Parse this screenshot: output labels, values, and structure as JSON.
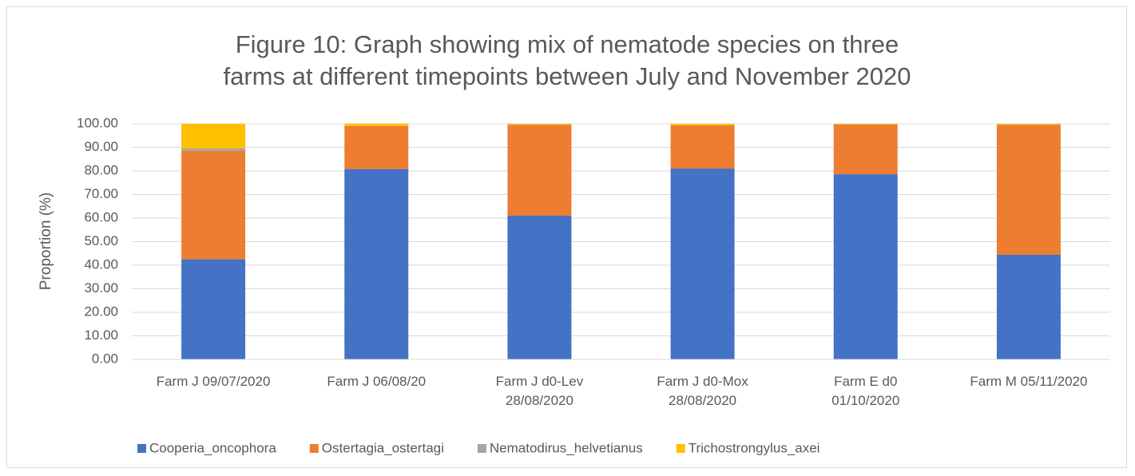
{
  "chart_data": {
    "type": "stacked_bar",
    "title": "Figure 10: Graph showing mix of nematode species on three farms at different timepoints between July and November 2020",
    "ylabel": "Proportion (%)",
    "categories": [
      "Farm J 09/07/2020",
      "Farm J 06/08/20",
      "Farm J d0-Lev\n28/08/2020",
      "Farm J d0-Mox\n28/08/2020",
      "Farm E d0\n01/10/2020",
      "Farm M 05/11/2020"
    ],
    "series": [
      {
        "name": "Cooperia_oncophora",
        "color": "#4472c4",
        "values": [
          42.5,
          80.8,
          61.0,
          81.0,
          78.6,
          44.4
        ]
      },
      {
        "name": "Ostertagia_ostertagi",
        "color": "#ed7d31",
        "values": [
          46.0,
          18.2,
          38.6,
          18.4,
          21.1,
          55.2
        ]
      },
      {
        "name": "Nematodirus_helvetianus",
        "color": "#a5a5a5",
        "values": [
          1.0,
          0,
          0,
          0,
          0,
          0
        ]
      },
      {
        "name": "Trichostrongylus_axei",
        "color": "#ffc000",
        "values": [
          10.5,
          1.0,
          0.4,
          0.6,
          0.3,
          0.4
        ]
      }
    ],
    "ylim": [
      0,
      100
    ],
    "yticks": [
      {
        "value": 0,
        "label": "0.00"
      },
      {
        "value": 10,
        "label": "10.00"
      },
      {
        "value": 20,
        "label": "20.00"
      },
      {
        "value": 30,
        "label": "30.00"
      },
      {
        "value": 40,
        "label": "40.00"
      },
      {
        "value": 50,
        "label": "50.00"
      },
      {
        "value": 60,
        "label": "60.00"
      },
      {
        "value": 70,
        "label": "70.00"
      },
      {
        "value": 80,
        "label": "80.00"
      },
      {
        "value": 90,
        "label": "90.00"
      },
      {
        "value": 100,
        "label": "100.00"
      }
    ],
    "grid": true,
    "legend": "bottom"
  }
}
